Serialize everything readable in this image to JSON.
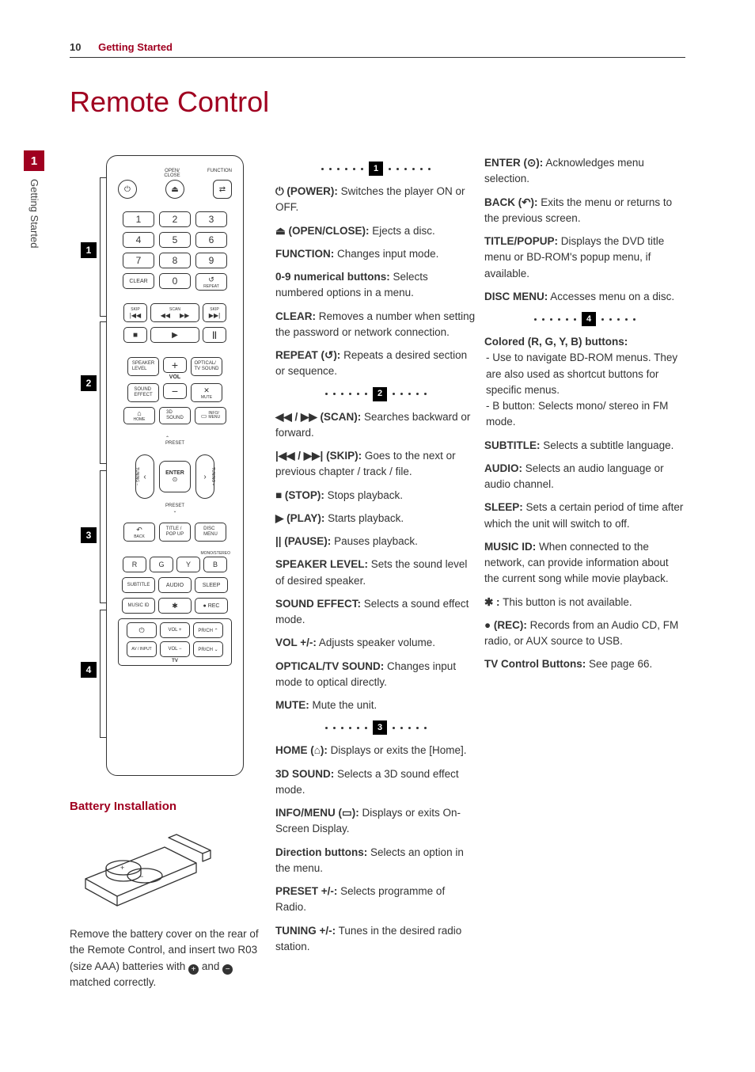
{
  "header": {
    "page_number": "10",
    "section": "Getting Started"
  },
  "title": "Remote Control",
  "side_tab": {
    "number": "1",
    "label": "Getting Started"
  },
  "remote": {
    "section_badges": [
      "1",
      "2",
      "3",
      "4"
    ],
    "top_labels": {
      "open_close": "OPEN/\nCLOSE",
      "function": "FUNCTION"
    },
    "top_row": {
      "power": "⏻",
      "eject": "⏏",
      "func": "⇄"
    },
    "numpad": [
      [
        "1",
        "2",
        "3"
      ],
      [
        "4",
        "5",
        "6"
      ],
      [
        "7",
        "8",
        "9"
      ]
    ],
    "numpad_bottom": {
      "clear": "CLEAR",
      "zero": "0",
      "repeat": "REPEAT",
      "repeat_icon": "↺"
    },
    "transport": {
      "skip_l_lbl": "SKIP",
      "skip_r_lbl": "SKIP",
      "scan_lbl": "SCAN",
      "skip_prev": "|◀◀",
      "scan_back": "◀◀",
      "scan_fwd": "▶▶",
      "skip_next": "▶▶|",
      "stop": "■",
      "play": "▶",
      "pause": "||"
    },
    "vol_block": {
      "speaker": "SPEAKER\nLEVEL",
      "optical": "OPTICAL/\nTV SOUND",
      "sound_effect": "SOUND\nEFFECT",
      "mute": "MUTE",
      "mute_icon": "✕",
      "vol": "VOL",
      "plus": "+",
      "minus": "−",
      "home": "HOME",
      "home_icon": "⌂",
      "sound3d": "3D\nSOUND",
      "info": "INFO/\nMENU",
      "info_icon": "▭"
    },
    "nav": {
      "preset_up": "PRESET",
      "preset_dn": "PRESET",
      "tuning_l": "TUNING −",
      "tuning_r": "TUNING +",
      "enter": "ENTER",
      "enter_icon": "⊙",
      "back": "BACK",
      "back_icon": "↶",
      "title": "TITLE /\nPOP UP",
      "disc": "DISC\nMENU"
    },
    "color_row": {
      "ms": "MONO/STEREO",
      "r": "R",
      "g": "G",
      "y": "Y",
      "b": "B"
    },
    "bottom": {
      "subtitle": "SUBTITLE",
      "audio": "AUDIO",
      "sleep": "SLEEP",
      "music": "MUSIC ID",
      "star": "✱",
      "rec": "● REC",
      "tv_power": "⏻",
      "volp": "VOL +",
      "prp": "PR/CH ⌃",
      "avinput": "AV / INPUT",
      "volm": "VOL −",
      "prm": "PR/CH ⌄",
      "tv_label": "TV"
    }
  },
  "battery": {
    "title": "Battery Installation",
    "text_before": "Remove the battery cover on the rear of the Remote Control, and insert two R03 (size AAA) batteries with ",
    "text_mid": " and ",
    "text_after": " matched correctly."
  },
  "sections": {
    "s1": [
      {
        "b": "⏻ (POWER):",
        "t": " Switches the player ON or OFF."
      },
      {
        "b": "⏏ (OPEN/CLOSE):",
        "t": " Ejects a disc."
      },
      {
        "b": "FUNCTION:",
        "t": " Changes input mode."
      },
      {
        "b": "0-9 numerical buttons:",
        "t": " Selects numbered options in a menu."
      },
      {
        "b": "CLEAR:",
        "t": " Removes a number when setting the password or network connection."
      },
      {
        "b": "REPEAT (↺):",
        "t": " Repeats a desired section or sequence."
      }
    ],
    "s2": [
      {
        "b": "◀◀ / ▶▶ (SCAN):",
        "t": " Searches backward or forward."
      },
      {
        "b": "|◀◀ / ▶▶| (SKIP):",
        "t": " Goes to the next or previous chapter / track / file."
      },
      {
        "b": "■ (STOP):",
        "t": " Stops playback."
      },
      {
        "b": "▶ (PLAY):",
        "t": " Starts playback."
      },
      {
        "b": "|| (PAUSE):",
        "t": " Pauses playback."
      },
      {
        "b": "SPEAKER LEVEL:",
        "t": " Sets the sound level of desired speaker."
      },
      {
        "b": "SOUND EFFECT:",
        "t": " Selects a sound effect mode."
      },
      {
        "b": "VOL +/-:",
        "t": " Adjusts speaker volume."
      },
      {
        "b": "OPTICAL/TV SOUND:",
        "t": " Changes input mode to optical directly."
      },
      {
        "b": "MUTE:",
        "t": " Mute the unit."
      }
    ],
    "s3": [
      {
        "b": "HOME (⌂):",
        "t": " Displays or exits the [Home]."
      },
      {
        "b": "3D SOUND:",
        "t": " Selects a 3D sound effect mode."
      },
      {
        "b": "INFO/MENU (▭):",
        "t": " Displays or exits On-Screen Display."
      },
      {
        "b": "Direction buttons:",
        "t": " Selects an option in the menu."
      },
      {
        "b": "PRESET +/-:",
        "t": " Selects programme of Radio."
      },
      {
        "b": "TUNING +/-:",
        "t": " Tunes in the desired radio station."
      }
    ],
    "s3b": [
      {
        "b": "ENTER (⊙):",
        "t": " Acknowledges menu selection."
      },
      {
        "b": "BACK (↶):",
        "t": " Exits the menu or returns to the previous screen."
      },
      {
        "b": "TITLE/POPUP:",
        "t": " Displays the DVD title menu or BD-ROM's popup menu, if available."
      },
      {
        "b": "DISC MENU:",
        "t": " Accesses menu on a disc."
      }
    ],
    "s4_heading": "Colored (R, G, Y, B) buttons:",
    "s4_lines": [
      "- Use to navigate BD-ROM menus. They are also used as shortcut buttons for specific menus.",
      "- B button: Selects mono/ stereo in FM mode."
    ],
    "s4": [
      {
        "b": "SUBTITLE:",
        "t": " Selects a subtitle language."
      },
      {
        "b": "AUDIO:",
        "t": " Selects an audio language or audio channel."
      },
      {
        "b": "SLEEP:",
        "t": " Sets a certain period of time after which the unit will switch to off."
      },
      {
        "b": "MUSIC ID:",
        "t": " When connected to the network, can provide information about the current song while movie playback."
      },
      {
        "b": "✱ :",
        "t": " This button is not available."
      },
      {
        "b": "● (REC):",
        "t": " Records from an Audio CD, FM radio, or AUX source to USB."
      },
      {
        "b": "TV Control Buttons:",
        "t": " See page 66."
      }
    ]
  }
}
